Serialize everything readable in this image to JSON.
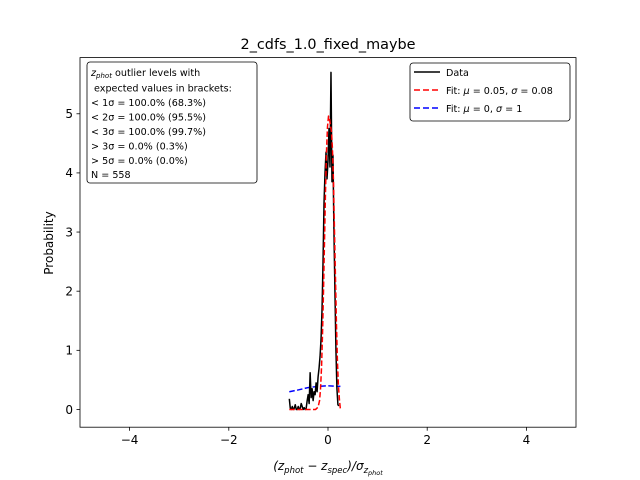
{
  "chart_data": {
    "type": "line",
    "title": "2_cdfs_1.0_fixed_maybe",
    "xlabel_parts": [
      "(z",
      "phot",
      " − z",
      "spec",
      ")/σ",
      "z",
      "phot"
    ],
    "ylabel": "Probability",
    "xlim": [
      -5,
      5
    ],
    "ylim": [
      -0.3,
      5.95
    ],
    "x_ticks": [
      -4,
      -2,
      0,
      2,
      4
    ],
    "x_tick_labels": [
      "−4",
      "−2",
      "0",
      "2",
      "4"
    ],
    "y_ticks": [
      0,
      1,
      2,
      3,
      4,
      5
    ],
    "y_tick_labels": [
      "0",
      "1",
      "2",
      "3",
      "4",
      "5"
    ],
    "grid": false,
    "legend_position": "top-right",
    "legend": [
      {
        "label_parts": [
          "Data"
        ],
        "color": "#000000",
        "dash": "solid"
      },
      {
        "label_parts": [
          "Fit: ",
          "μ",
          " = 0.05, ",
          "σ",
          " = 0.08"
        ],
        "color": "#ff0000",
        "dash": "dashed"
      },
      {
        "label_parts": [
          "Fit: ",
          "μ",
          " = 0, ",
          "σ",
          " = 1"
        ],
        "color": "#0000ff",
        "dash": "dashed"
      }
    ],
    "stats_box": {
      "first_line_symbol": "z",
      "first_line_subscript": "phot",
      "first_line_rest": " outlier levels with",
      "lines": [
        " expected values in brackets:",
        "< 1σ = 100.0% (68.3%)",
        "< 2σ = 100.0% (95.5%)",
        "< 3σ = 100.0% (99.7%)",
        "> 3σ = 0.0% (0.3%)",
        "> 5σ = 0.0% (0.0%)",
        "N = 558"
      ]
    },
    "series": [
      {
        "name": "Data",
        "color": "#000000",
        "dash": "solid",
        "x": [
          -0.78,
          -0.76,
          -0.74,
          -0.72,
          -0.7,
          -0.68,
          -0.66,
          -0.64,
          -0.62,
          -0.6,
          -0.58,
          -0.56,
          -0.54,
          -0.52,
          -0.5,
          -0.48,
          -0.46,
          -0.44,
          -0.42,
          -0.4,
          -0.38,
          -0.36,
          -0.34,
          -0.32,
          -0.3,
          -0.28,
          -0.26,
          -0.24,
          -0.22,
          -0.2,
          -0.18,
          -0.16,
          -0.14,
          -0.12,
          -0.1,
          -0.08,
          -0.06,
          -0.04,
          -0.02,
          0.0,
          0.02,
          0.04,
          0.06,
          0.08,
          0.1,
          0.12,
          0.14,
          0.16,
          0.18,
          0.2,
          0.22
        ],
        "y": [
          0.18,
          0.02,
          0.0,
          0.05,
          0.0,
          0.02,
          0.08,
          0.0,
          0.0,
          0.05,
          0.0,
          0.02,
          0.1,
          0.05,
          0.0,
          0.03,
          0.0,
          0.02,
          0.15,
          0.25,
          0.1,
          0.62,
          0.2,
          0.35,
          0.15,
          0.3,
          0.25,
          0.45,
          0.3,
          0.55,
          0.7,
          0.9,
          1.2,
          1.7,
          2.5,
          3.5,
          4.0,
          4.35,
          3.9,
          4.2,
          4.75,
          4.1,
          5.7,
          3.85,
          4.3,
          3.0,
          2.0,
          1.0,
          0.35,
          0.08,
          0.06
        ]
      },
      {
        "name": "Fit: μ = 0.05, σ = 0.08",
        "color": "#ff0000",
        "dash": "dashed",
        "x": [
          -0.78,
          -0.7,
          -0.6,
          -0.5,
          -0.4,
          -0.35,
          -0.3,
          -0.25,
          -0.2,
          -0.17,
          -0.15,
          -0.13,
          -0.11,
          -0.09,
          -0.07,
          -0.05,
          -0.03,
          -0.01,
          0.01,
          0.03,
          0.05,
          0.07,
          0.09,
          0.11,
          0.13,
          0.15,
          0.17,
          0.19,
          0.21,
          0.23,
          0.25
        ],
        "y": [
          0.0,
          0.0,
          0.0,
          0.0,
          0.0,
          0.0,
          0.0,
          0.0,
          0.04,
          0.15,
          0.36,
          0.72,
          1.29,
          2.04,
          2.87,
          3.7,
          4.37,
          4.78,
          4.96,
          4.92,
          4.8,
          4.7,
          4.4,
          3.87,
          3.05,
          2.25,
          1.46,
          0.82,
          0.4,
          0.17,
          0.0
        ]
      },
      {
        "name": "Fit: μ = 0, σ = 1",
        "color": "#0000ff",
        "dash": "dashed",
        "x": [
          -0.78,
          -0.6,
          -0.4,
          -0.2,
          0.0,
          0.25
        ],
        "y": [
          0.3,
          0.33,
          0.37,
          0.39,
          0.4,
          0.39
        ]
      }
    ]
  }
}
